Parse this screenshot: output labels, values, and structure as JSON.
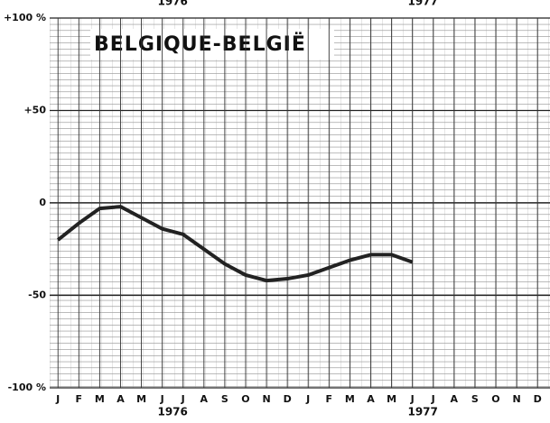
{
  "chart_data": {
    "type": "line",
    "title": "BELGIQUE-BELGIË",
    "categories": [
      "J",
      "F",
      "M",
      "A",
      "M",
      "J",
      "J",
      "A",
      "S",
      "O",
      "N",
      "D",
      "J",
      "F",
      "M",
      "A",
      "M",
      "J",
      "J",
      "A",
      "S",
      "O",
      "N",
      "D"
    ],
    "year_labels": [
      "1976",
      "1977"
    ],
    "series": [
      {
        "name": null,
        "color": "#222",
        "values": [
          -20,
          -11,
          -3,
          -2,
          -8,
          -14,
          -17,
          -25,
          -33,
          -39,
          -42,
          -41,
          -39,
          -35,
          -31,
          -28,
          -28,
          -32,
          null,
          null,
          null,
          null,
          null,
          null
        ]
      }
    ],
    "ylim": [
      -100,
      100
    ],
    "yticks": [
      {
        "value": -100,
        "label": "-100 %"
      },
      -50,
      0,
      {
        "value": 50,
        "label": "+50"
      },
      {
        "value": 100,
        "label": "+100 %"
      }
    ],
    "grid": true
  }
}
